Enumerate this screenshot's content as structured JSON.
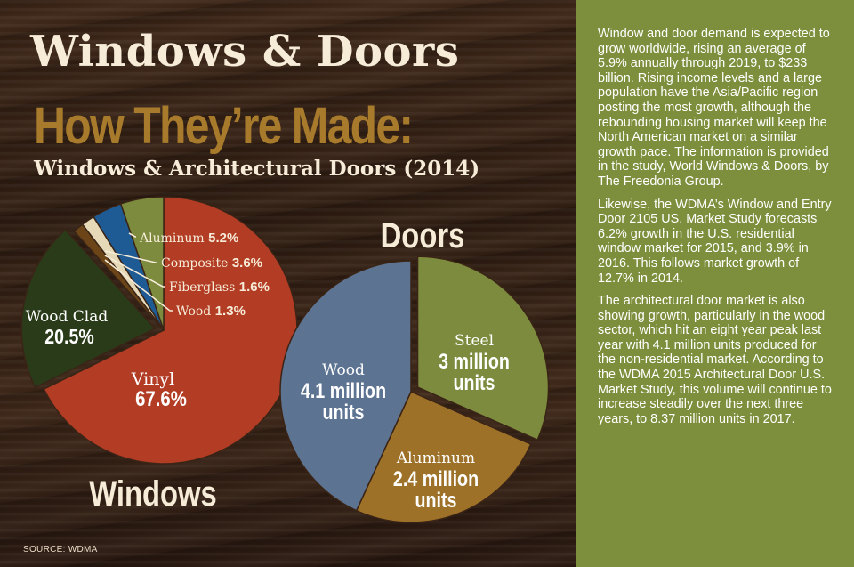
{
  "header": {
    "title": "Windows & Doors",
    "subtitle": "How They’re Made:",
    "subsubtitle": "Windows & Architectural Doors (2014)"
  },
  "source": "SOURCE: WDMA",
  "sidebar": {
    "paragraphs": [
      "Window and door demand is expected to grow worldwide, rising an average of 5.9% annually through 2019, to $233 billion. Rising income levels and a large population have the Asia/Pacific region posting the most growth, although the rebounding housing market will keep the North American market on a similar growth pace. The information is provided in the study, World Windows & Doors, by The Freedonia Group.",
      "Likewise, the WDMA’s Window and Entry Door 2105 US. Market Study forecasts 6.2% growth in the U.S. residential window market for 2015, and 3.9% in 2016. This follows market growth of 12.7% in 2014.",
      "The architectural door market is also showing growth, particularly in the wood sector, which hit an eight year peak last year with 4.1 million units produced for the non-residential market. According to the WDMA 2015 Architectural Door U.S. Market Study, this volume will continue to increase steadily over the next three years, to 8.37 million units in 2017."
    ]
  },
  "colors": {
    "vinyl": "#b23c24",
    "wood_clad": "#2a3b1a",
    "wood": "#6b4418",
    "fiberglass": "#e6d9b8",
    "composite": "#1e5a94",
    "aluminum_win": "#7c8b3d",
    "door_wood": "#5d7392",
    "door_steel": "#7c8b3d",
    "door_aluminum": "#9e7128",
    "label_light": "#f6ecd8"
  },
  "chart_data": [
    {
      "type": "pie",
      "title": "Windows",
      "unit": "%",
      "slices": [
        {
          "name": "Vinyl",
          "value": 67.6,
          "label": "67.6%"
        },
        {
          "name": "Wood Clad",
          "value": 20.5,
          "label": "20.5%"
        },
        {
          "name": "Wood",
          "value": 1.3,
          "label": "1.3%"
        },
        {
          "name": "Fiberglass",
          "value": 1.6,
          "label": "1.6%"
        },
        {
          "name": "Composite",
          "value": 3.6,
          "label": "3.6%"
        },
        {
          "name": "Aluminum",
          "value": 5.2,
          "label": "5.2%"
        }
      ]
    },
    {
      "type": "pie",
      "title": "Doors",
      "unit": "million units",
      "slices": [
        {
          "name": "Steel",
          "value": 3,
          "label_lines": [
            "3 million",
            "units"
          ]
        },
        {
          "name": "Aluminum",
          "value": 2.4,
          "label_lines": [
            "2.4 million",
            "units"
          ]
        },
        {
          "name": "Wood",
          "value": 4.1,
          "label_lines": [
            "4.1 million",
            "units"
          ]
        }
      ]
    }
  ]
}
